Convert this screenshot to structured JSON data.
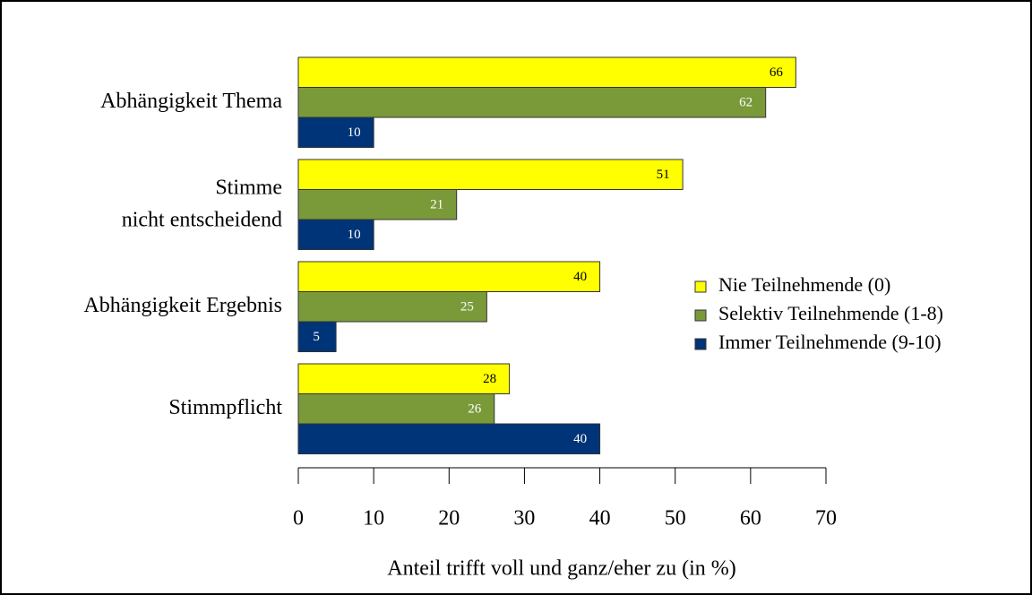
{
  "chart_data": {
    "type": "bar",
    "orientation": "horizontal",
    "categories": [
      "Abhängigkeit Thema",
      "Stimme\nnicht entscheidend",
      "Abhängigkeit Ergebnis",
      "Stimmpflicht"
    ],
    "series": [
      {
        "name": "Nie Teilnehmende (0)",
        "color": "#ffff00",
        "values": [
          66,
          51,
          40,
          28
        ]
      },
      {
        "name": "Selektiv Teilnehmende (1-8)",
        "color": "#7a9a3a",
        "values": [
          62,
          21,
          25,
          26
        ]
      },
      {
        "name": "Immer Teilnehmende (9-10)",
        "color": "#003478",
        "values": [
          10,
          10,
          5,
          40
        ]
      }
    ],
    "xlabel": "Anteil trifft voll und ganz/eher zu (in %)",
    "xlim": [
      0,
      70
    ],
    "xticks": [
      0,
      10,
      20,
      30,
      40,
      50,
      60,
      70
    ],
    "legend": "right",
    "grid": false
  }
}
